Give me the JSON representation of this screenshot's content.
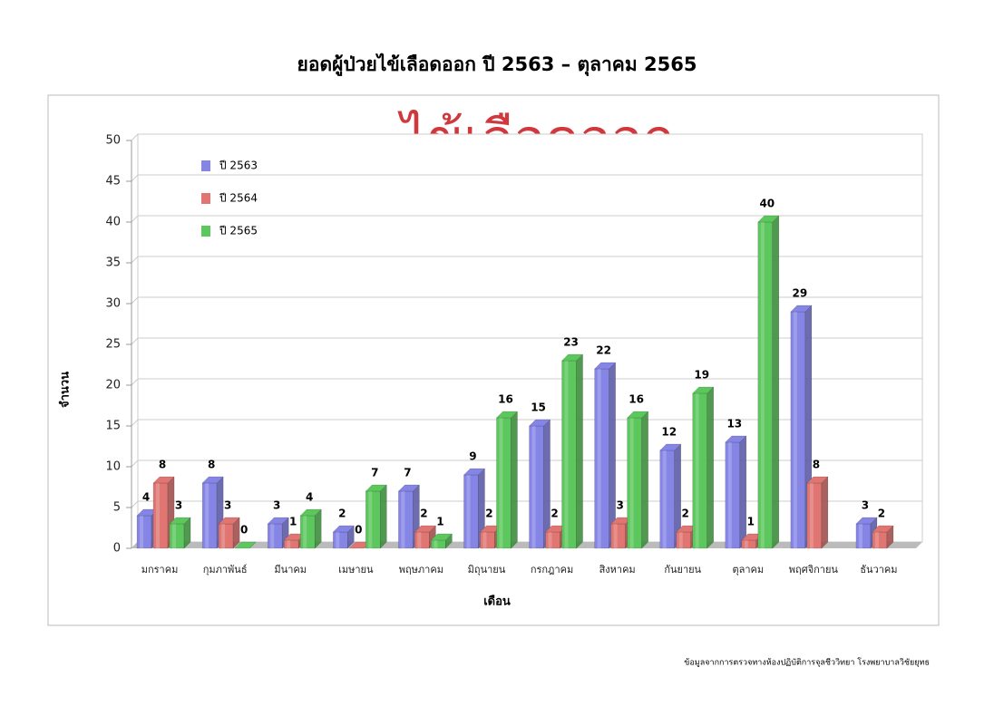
{
  "chart_data": {
    "type": "bar3d",
    "title": "ยอดผู้ป่วยไข้เลือดออก ปี 2563 – ตุลาคม 2565",
    "annotation": "ไข้เลือดออก",
    "y_label": "จำนวน",
    "x_label": "เดือน",
    "note": "ข้อมูลจากการตรวจทางห้องปฏิบัติการจุลชีววิทยา โรงพยาบาลวิชัยยุทธ",
    "categories": [
      "มกราคม",
      "กุมภาพันธ์",
      "มีนาคม",
      "เมษายน",
      "พฤษภาคม",
      "มิถุนายน",
      "กรกฎาคม",
      "สิงหาคม",
      "กันยายน",
      "ตุลาคม",
      "พฤศจิกายน",
      "ธันวาคม"
    ],
    "series": [
      {
        "name": "ปี 2563",
        "color": "#8585e6",
        "values": [
          4,
          8,
          3,
          2,
          7,
          9,
          15,
          22,
          12,
          13,
          29,
          3
        ]
      },
      {
        "name": "ปี 2564",
        "color": "#e07572",
        "values": [
          8,
          3,
          1,
          0,
          2,
          2,
          2,
          3,
          2,
          1,
          8,
          2
        ]
      },
      {
        "name": "ปี 2565",
        "color": "#5cc75c",
        "values": [
          3,
          0,
          4,
          7,
          1,
          16,
          23,
          16,
          19,
          40,
          null,
          null
        ]
      }
    ],
    "ylim": [
      0,
      50
    ],
    "yticks": [
      0,
      5,
      10,
      15,
      20,
      25,
      30,
      35,
      40,
      45,
      50
    ],
    "grid": true,
    "legend": "upper left"
  }
}
